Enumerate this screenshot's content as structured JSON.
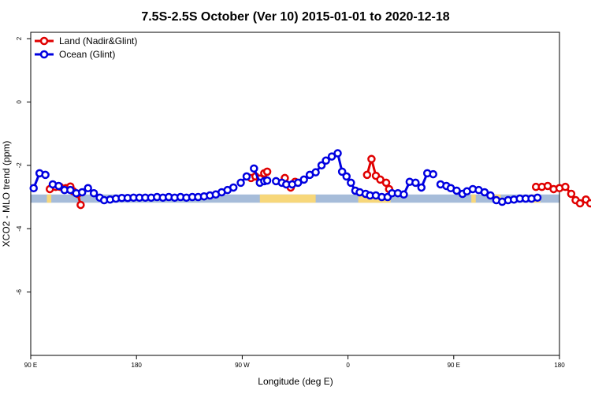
{
  "chart_data": {
    "type": "line",
    "title": "7.5S-2.5S October (Ver 10)   2015-01-01 to 2020-12-18",
    "xlabel": "Longitude (deg E)",
    "ylabel": "XCO2 - MLO trend (ppm)",
    "xlim": [
      90,
      450
    ],
    "ylim": [
      -8,
      2.2
    ],
    "x_ticks": [
      {
        "value": 90,
        "label": "90 E"
      },
      {
        "value": 162,
        "label": "180"
      },
      {
        "value": 234,
        "label": "90 W"
      },
      {
        "value": 306,
        "label": "0"
      },
      {
        "value": 378,
        "label": "90 E"
      },
      {
        "value": 450,
        "label": "180"
      }
    ],
    "y_ticks": [
      {
        "value": 2,
        "label": "2"
      },
      {
        "value": 0,
        "label": "0"
      },
      {
        "value": -2,
        "label": "-2"
      },
      {
        "value": -4,
        "label": "-4"
      },
      {
        "value": -6,
        "label": "-6"
      }
    ],
    "legend_position": "top-left",
    "series": [
      {
        "name": "Land (Nadir&Glint)",
        "color": "#e00000",
        "x": [
          103,
          107,
          110,
          114,
          117,
          119,
          122,
          124,
          240,
          243,
          246,
          249,
          251,
          263,
          267,
          270,
          319,
          322,
          325,
          328,
          332,
          334,
          434,
          438,
          442,
          446,
          450,
          454,
          458,
          461,
          464,
          468,
          471
        ],
        "y": [
          -2.75,
          -2.68,
          -2.68,
          -2.72,
          -2.67,
          -2.82,
          -2.9,
          -3.25,
          -2.4,
          -2.35,
          -2.42,
          -2.25,
          -2.2,
          -2.4,
          -2.7,
          -2.52,
          -2.3,
          -1.8,
          -2.33,
          -2.45,
          -2.55,
          -2.75,
          -2.68,
          -2.68,
          -2.65,
          -2.75,
          -2.72,
          -2.68,
          -2.9,
          -3.1,
          -3.2,
          -3.08,
          -3.2
        ]
      },
      {
        "name": "Ocean (Glint)",
        "color": "#0000e0",
        "x": [
          92,
          96,
          100,
          105,
          109,
          113,
          117,
          121,
          125,
          129,
          133,
          137,
          140,
          144,
          148,
          152,
          156,
          160,
          164,
          168,
          172,
          176,
          180,
          184,
          188,
          192,
          196,
          200,
          204,
          208,
          212,
          216,
          220,
          224,
          228,
          233,
          237,
          242,
          246,
          249,
          251,
          257,
          261,
          264,
          268,
          272,
          276,
          280,
          284,
          288,
          291,
          295,
          299,
          302,
          305,
          308,
          311,
          314,
          318,
          321,
          325,
          329,
          333,
          336,
          340,
          344,
          348,
          352,
          356,
          360,
          364,
          369,
          373,
          376,
          380,
          384,
          387,
          391,
          395,
          399,
          403,
          407,
          411,
          415,
          419,
          423,
          427,
          431,
          435
        ],
        "y": [
          -2.72,
          -2.25,
          -2.3,
          -2.6,
          -2.65,
          -2.78,
          -2.78,
          -2.88,
          -2.85,
          -2.72,
          -2.88,
          -3.02,
          -3.1,
          -3.08,
          -3.05,
          -3.03,
          -3.03,
          -3.02,
          -3.02,
          -3.02,
          -3.02,
          -3.0,
          -3.02,
          -3.0,
          -3.02,
          -3.0,
          -3.02,
          -3.0,
          -3.0,
          -2.98,
          -2.95,
          -2.92,
          -2.85,
          -2.78,
          -2.7,
          -2.55,
          -2.35,
          -2.1,
          -2.55,
          -2.5,
          -2.48,
          -2.5,
          -2.55,
          -2.6,
          -2.6,
          -2.55,
          -2.45,
          -2.3,
          -2.22,
          -2.0,
          -1.85,
          -1.72,
          -1.62,
          -2.2,
          -2.35,
          -2.55,
          -2.8,
          -2.85,
          -2.9,
          -2.95,
          -2.95,
          -3.0,
          -3.0,
          -2.88,
          -2.88,
          -2.92,
          -2.52,
          -2.55,
          -2.7,
          -2.25,
          -2.28,
          -2.6,
          -2.65,
          -2.72,
          -2.8,
          -2.9,
          -2.82,
          -2.75,
          -2.78,
          -2.85,
          -2.95,
          -3.1,
          -3.15,
          -3.1,
          -3.08,
          -3.05,
          -3.05,
          -3.05,
          -3.02
        ]
      }
    ],
    "background_band": {
      "y_range": [
        -3.18,
        -2.92
      ],
      "ocean_color": "#a6bcd9",
      "land_color": "#f7d77a",
      "land_x_ranges": [
        [
          101,
          104
        ],
        [
          246,
          284
        ],
        [
          313,
          335
        ],
        [
          390,
          393
        ],
        [
          405,
          410
        ],
        [
          430,
          437
        ]
      ]
    }
  }
}
